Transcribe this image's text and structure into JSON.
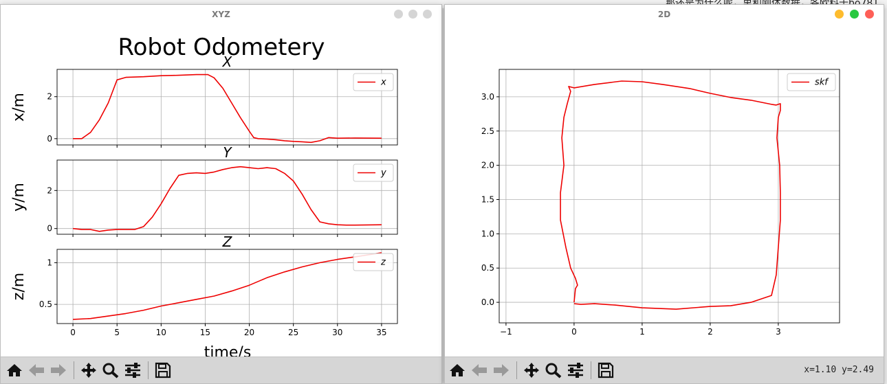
{
  "background": {
    "text": "那还是为什么呢，里和刚体数据，各欧料于bo781"
  },
  "windows": {
    "xyz": {
      "title": "XYZ",
      "figure_title": "Robot Odometery",
      "xlabel": "time/s"
    },
    "twod": {
      "title": "2D",
      "coords": "x=1.10 y=2.49"
    }
  },
  "colors": {
    "line": "#ee0000",
    "grid": "#b0b0b0",
    "tl_red": "#fe5f57",
    "tl_yellow": "#febc2e",
    "tl_green": "#28c840",
    "tl_gray": "#d5d5d5"
  },
  "toolbar_icons": [
    "home-icon",
    "back-icon",
    "forward-icon",
    "pan-icon",
    "zoom-icon",
    "configure-icon",
    "save-icon"
  ],
  "chart_data": [
    {
      "type": "line",
      "title": "X",
      "ylabel": "x/m",
      "xlim": [
        -1.8,
        36.8
      ],
      "ylim": [
        -0.3,
        3.3
      ],
      "xticks": [
        0,
        5,
        10,
        15,
        20,
        25,
        30,
        35
      ],
      "yticks": [
        0,
        2
      ],
      "grid": true,
      "legend_position": "top-right",
      "legend_label": "x",
      "x": [
        0,
        1,
        2,
        3,
        4,
        5,
        6,
        8,
        10,
        12,
        14,
        15.3,
        16,
        17,
        18,
        19,
        20,
        20.5,
        21,
        22,
        23,
        24,
        25,
        26,
        27,
        28,
        29,
        30,
        32,
        35
      ],
      "y": [
        0,
        0,
        0.3,
        0.9,
        1.7,
        2.8,
        2.92,
        2.95,
        3.0,
        3.02,
        3.05,
        3.05,
        2.9,
        2.4,
        1.7,
        1.0,
        0.35,
        0.05,
        0,
        -0.02,
        -0.05,
        -0.1,
        -0.13,
        -0.15,
        -0.18,
        -0.1,
        0.05,
        0.02,
        0.03,
        0.02
      ]
    },
    {
      "type": "line",
      "title": "Y",
      "ylabel": "y/m",
      "xlim": [
        -1.8,
        36.8
      ],
      "ylim": [
        -0.3,
        3.6
      ],
      "xticks": [
        0,
        5,
        10,
        15,
        20,
        25,
        30,
        35
      ],
      "yticks": [
        0,
        2
      ],
      "grid": true,
      "legend_position": "top-right",
      "legend_label": "y",
      "x": [
        0,
        1,
        2,
        3,
        4,
        5,
        6,
        7,
        8,
        9,
        10,
        11,
        12,
        13,
        14,
        15,
        16,
        17,
        18,
        19,
        20,
        21,
        22,
        23,
        24,
        25,
        26,
        27,
        28,
        29,
        30,
        31,
        32,
        35
      ],
      "y": [
        0,
        -0.05,
        -0.05,
        -0.15,
        -0.08,
        -0.05,
        -0.05,
        -0.05,
        0.1,
        0.6,
        1.3,
        2.1,
        2.8,
        2.9,
        2.93,
        2.9,
        2.97,
        3.1,
        3.2,
        3.25,
        3.2,
        3.15,
        3.2,
        3.15,
        2.9,
        2.5,
        1.8,
        1.0,
        0.35,
        0.25,
        0.2,
        0.18,
        0.18,
        0.2
      ]
    },
    {
      "type": "line",
      "title": "Z",
      "ylabel": "z/m",
      "xlim": [
        -1.8,
        36.8
      ],
      "ylim": [
        0.27,
        1.16
      ],
      "xticks": [
        0,
        5,
        10,
        15,
        20,
        25,
        30,
        35
      ],
      "yticks": [
        0.5,
        1.0
      ],
      "grid": true,
      "legend_position": "top-right",
      "legend_label": "z",
      "x": [
        0,
        2,
        4,
        6,
        8,
        10,
        12,
        14,
        16,
        18,
        20,
        22,
        24,
        26,
        28,
        30,
        32,
        35
      ],
      "y": [
        0.32,
        0.33,
        0.36,
        0.39,
        0.43,
        0.48,
        0.52,
        0.56,
        0.6,
        0.66,
        0.73,
        0.82,
        0.89,
        0.95,
        1.0,
        1.04,
        1.07,
        1.12
      ]
    },
    {
      "type": "line",
      "title": "",
      "xlabel": "",
      "ylabel": "",
      "xlim": [
        -1.1,
        3.9
      ],
      "ylim": [
        -0.3,
        3.4
      ],
      "xticks": [
        -1,
        0,
        1,
        2,
        3
      ],
      "yticks": [
        0.0,
        0.5,
        1.0,
        1.5,
        2.0,
        2.5,
        3.0
      ],
      "grid": true,
      "legend_position": "top-right",
      "legend_label": "skf",
      "x": [
        0,
        0.02,
        0.05,
        0.02,
        -0.05,
        -0.12,
        -0.2,
        -0.2,
        -0.15,
        -0.18,
        -0.15,
        -0.1,
        -0.05,
        -0.08,
        0,
        0.3,
        0.7,
        1.0,
        1.3,
        1.7,
        2.0,
        2.3,
        2.6,
        2.9,
        2.97,
        3.03,
        3.03,
        3.0,
        2.98,
        3.02,
        3.03,
        3.03,
        3.0,
        2.97,
        2.9,
        2.6,
        2.3,
        2.0,
        1.5,
        1.0,
        0.6,
        0.3,
        0.1,
        0
      ],
      "y": [
        0,
        0.2,
        0.25,
        0.35,
        0.5,
        0.8,
        1.2,
        1.6,
        2.0,
        2.4,
        2.7,
        2.9,
        3.08,
        3.15,
        3.13,
        3.18,
        3.23,
        3.22,
        3.18,
        3.12,
        3.05,
        2.99,
        2.95,
        2.89,
        2.88,
        2.9,
        2.8,
        2.7,
        2.4,
        2.0,
        1.6,
        1.2,
        0.8,
        0.4,
        0.1,
        0.0,
        -0.05,
        -0.06,
        -0.1,
        -0.08,
        -0.04,
        -0.02,
        -0.03,
        -0.02
      ]
    }
  ]
}
